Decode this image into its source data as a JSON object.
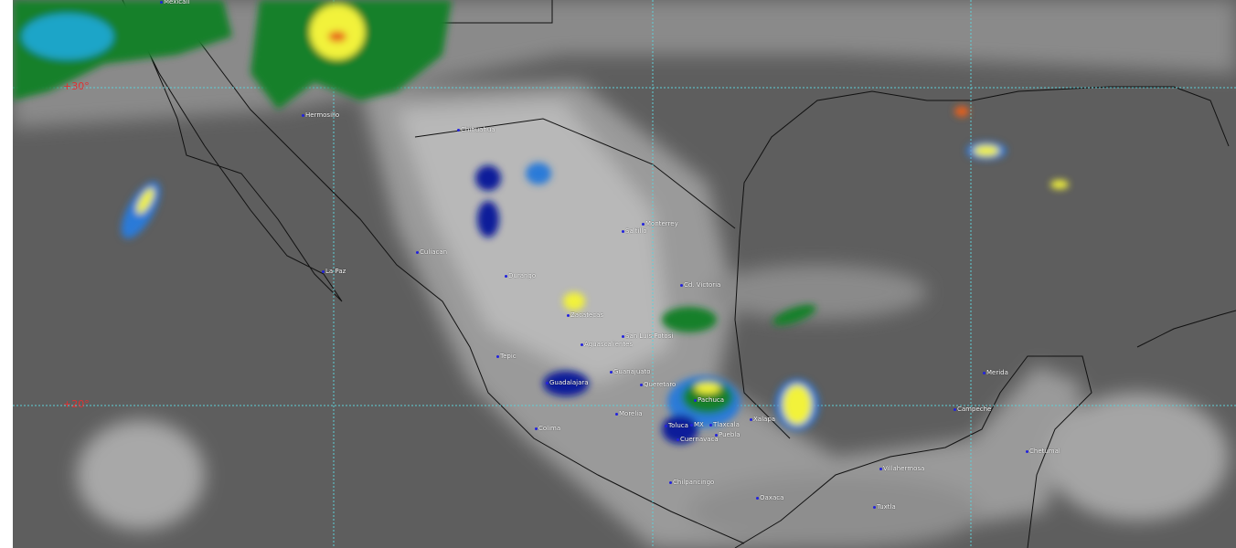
{
  "map": {
    "latitude_labels": [
      "+30°",
      "+20°"
    ],
    "cities": [
      {
        "name": "Mexicali"
      },
      {
        "name": "Hermosillo"
      },
      {
        "name": "Chihuahua"
      },
      {
        "name": "La Paz"
      },
      {
        "name": "Culiacan"
      },
      {
        "name": "Durango"
      },
      {
        "name": "Saltillo"
      },
      {
        "name": "Monterrey"
      },
      {
        "name": "Cd. Victoria"
      },
      {
        "name": "Zacatecas"
      },
      {
        "name": "San Luis Potosi"
      },
      {
        "name": "Aguascalientes"
      },
      {
        "name": "Tepic"
      },
      {
        "name": "Guadalajara"
      },
      {
        "name": "Guanajuato"
      },
      {
        "name": "Queretaro"
      },
      {
        "name": "Pachuca"
      },
      {
        "name": "Morelia"
      },
      {
        "name": "Colima"
      },
      {
        "name": "Toluca"
      },
      {
        "name": "MX"
      },
      {
        "name": "Tlaxcala"
      },
      {
        "name": "Puebla"
      },
      {
        "name": "Cuernavaca"
      },
      {
        "name": "Xalapa"
      },
      {
        "name": "Chilpancingo"
      },
      {
        "name": "Oaxaca"
      },
      {
        "name": "Villahermosa"
      },
      {
        "name": "Tuxtla"
      },
      {
        "name": "Campeche"
      },
      {
        "name": "Merida"
      },
      {
        "name": "Chetumal"
      }
    ],
    "colors": {
      "grid": "#5fd0d8",
      "latitude_label": "#e03030",
      "city_dot": "#2222dd",
      "cloud_scale": [
        "#0a1f9a",
        "#2a7ad8",
        "#1aa5c8",
        "#12802a",
        "#f2f23a",
        "#e8601a"
      ]
    }
  }
}
